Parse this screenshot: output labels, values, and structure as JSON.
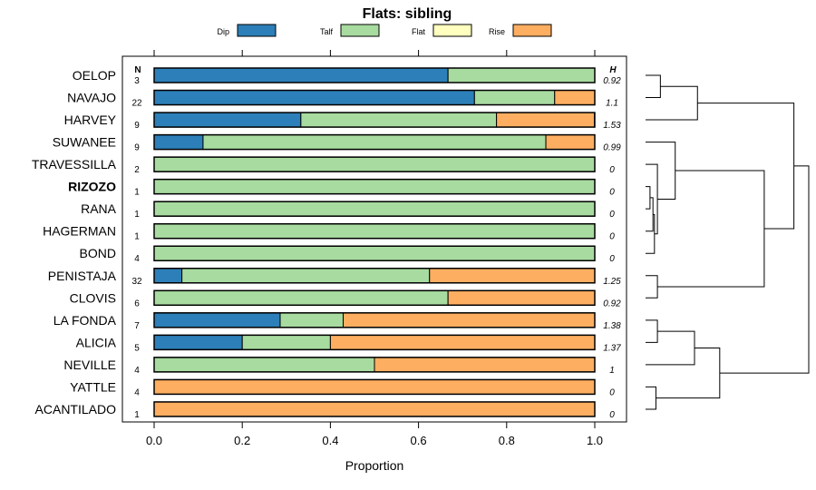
{
  "chart_data": {
    "type": "bar",
    "stacked": true,
    "orientation": "horizontal",
    "title": "Flats: sibling",
    "xlabel": "Proportion",
    "xlim": [
      0,
      1
    ],
    "xticks": [
      "0.0",
      "0.2",
      "0.4",
      "0.6",
      "0.8",
      "1.0"
    ],
    "xtick_values": [
      0,
      0.2,
      0.4,
      0.6,
      0.8,
      1.0
    ],
    "n_header": "N",
    "h_header": "H",
    "legend": [
      {
        "name": "Dip",
        "color": "#2c7fb8"
      },
      {
        "name": "Talf",
        "color": "#a8dba0"
      },
      {
        "name": "Flat",
        "color": "#ffffbf"
      },
      {
        "name": "Rise",
        "color": "#fdae61"
      }
    ],
    "categories": [
      "OELOP",
      "NAVAJO",
      "HARVEY",
      "SUWANEE",
      "TRAVESSILLA",
      "RIZOZO",
      "RANA",
      "HAGERMAN",
      "BOND",
      "PENISTAJA",
      "CLOVIS",
      "LA FONDA",
      "ALICIA",
      "NEVILLE",
      "YATTLE",
      "ACANTILADO"
    ],
    "bold_categories": [
      "RIZOZO"
    ],
    "n": [
      "3",
      "22",
      "9",
      "9",
      "2",
      "1",
      "1",
      "1",
      "4",
      "32",
      "6",
      "7",
      "5",
      "4",
      "4",
      "1"
    ],
    "h": [
      "0.92",
      "1.1",
      "1.53",
      "0.99",
      "0",
      "0",
      "0",
      "0",
      "0",
      "1.25",
      "0.92",
      "1.38",
      "1.37",
      "1",
      "0",
      "0"
    ],
    "series": [
      {
        "name": "Dip",
        "values": [
          0.667,
          0.727,
          0.333,
          0.111,
          0,
          0,
          0,
          0,
          0,
          0.063,
          0,
          0.286,
          0.2,
          0,
          0,
          0
        ]
      },
      {
        "name": "Talf",
        "values": [
          0.333,
          0.182,
          0.444,
          0.778,
          1,
          1,
          1,
          1,
          1,
          0.562,
          0.667,
          0.143,
          0.2,
          0.5,
          0,
          0
        ]
      },
      {
        "name": "Flat",
        "values": [
          0,
          0,
          0,
          0,
          0,
          0,
          0,
          0,
          0,
          0,
          0,
          0,
          0,
          0,
          0,
          0
        ]
      },
      {
        "name": "Rise",
        "values": [
          0,
          0.091,
          0.222,
          0.111,
          0,
          0,
          0,
          0,
          0,
          0.375,
          0.333,
          0.571,
          0.6,
          0.5,
          1,
          1
        ]
      }
    ],
    "dendrogram": [
      {
        "left": "OELOP",
        "right": "NAVAJO",
        "height": 0.1
      },
      {
        "left": "C1",
        "right": "HARVEY",
        "height": 0.35
      },
      {
        "left": "RIZOZO",
        "right": "RANA",
        "height": 0.03
      },
      {
        "left": "C3",
        "right": "HAGERMAN",
        "height": 0.05
      },
      {
        "left": "BOND",
        "right": "C4",
        "height": 0.06
      },
      {
        "left": "TRAVESSILLA",
        "right": "C5",
        "height": 0.08
      },
      {
        "left": "SUWANEE",
        "right": "C6",
        "height": 0.2
      },
      {
        "left": "PENISTAJA",
        "right": "CLOVIS",
        "height": 0.08
      },
      {
        "left": "C7",
        "right": "C8",
        "height": 0.8
      },
      {
        "left": "C2",
        "right": "C9",
        "height": 1.0
      },
      {
        "left": "LA FONDA",
        "right": "ALICIA",
        "height": 0.08
      },
      {
        "left": "C11",
        "right": "NEVILLE",
        "height": 0.33
      },
      {
        "left": "YATTLE",
        "right": "ACANTILADO",
        "height": 0.07
      },
      {
        "left": "C12",
        "right": "C13",
        "height": 0.5
      },
      {
        "left": "C10",
        "right": "C14",
        "height": 1.1
      }
    ]
  }
}
